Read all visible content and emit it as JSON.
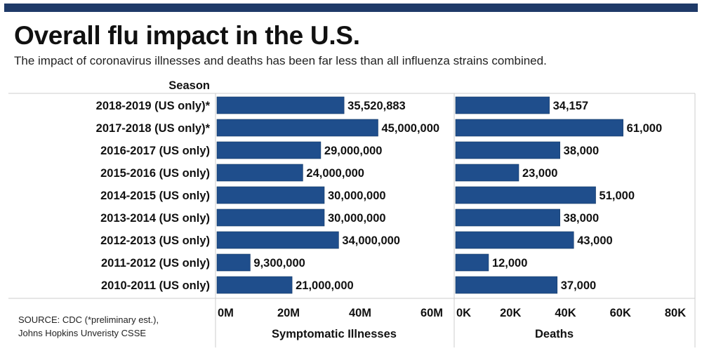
{
  "title": "Overall flu impact in the U.S.",
  "subtitle": "The impact of coronavirus illnesses and deaths has been far less than all influenza strains combined.",
  "source": "SOURCE: CDC  (*preliminary est.),\nJohns Hopkins Unveristy CSSE",
  "colors": {
    "bar": "#1f4e8c",
    "bar_stroke": "#173a66",
    "header_bar": "#1f3a68",
    "grid": "#cccccc"
  },
  "chart_data": [
    {
      "type": "bar",
      "orientation": "horizontal",
      "ylabel": "Season",
      "xlabel": "Symptomatic Illnesses",
      "xlim": [
        0,
        60000000
      ],
      "ticks": [
        0,
        20000000,
        40000000,
        60000000
      ],
      "tick_labels": [
        "0M",
        "20M",
        "40M",
        "60M"
      ],
      "categories": [
        "2018-2019 (US only)*",
        "2017-2018 (US only)*",
        "2016-2017 (US only)",
        "2015-2016 (US only)",
        "2014-2015 (US only)",
        "2013-2014 (US only)",
        "2012-2013 (US only)",
        "2011-2012 (US only)",
        "2010-2011 (US only)"
      ],
      "values": [
        35520883,
        45000000,
        29000000,
        24000000,
        30000000,
        30000000,
        34000000,
        9300000,
        21000000
      ],
      "value_labels": [
        "35,520,883",
        "45,000,000",
        "29,000,000",
        "24,000,000",
        "30,000,000",
        "30,000,000",
        "34,000,000",
        "9,300,000",
        "21,000,000"
      ]
    },
    {
      "type": "bar",
      "orientation": "horizontal",
      "xlabel": "Deaths",
      "xlim": [
        0,
        80000
      ],
      "ticks": [
        0,
        20000,
        40000,
        60000,
        80000
      ],
      "tick_labels": [
        "0K",
        "20K",
        "40K",
        "60K",
        "80K"
      ],
      "categories": [
        "2018-2019 (US only)*",
        "2017-2018 (US only)*",
        "2016-2017 (US only)",
        "2015-2016 (US only)",
        "2014-2015 (US only)",
        "2013-2014 (US only)",
        "2012-2013 (US only)",
        "2011-2012 (US only)",
        "2010-2011 (US only)"
      ],
      "values": [
        34157,
        61000,
        38000,
        23000,
        51000,
        38000,
        43000,
        12000,
        37000
      ],
      "value_labels": [
        "34,157",
        "61,000",
        "38,000",
        "23,000",
        "51,000",
        "38,000",
        "43,000",
        "12,000",
        "37,000"
      ]
    }
  ]
}
